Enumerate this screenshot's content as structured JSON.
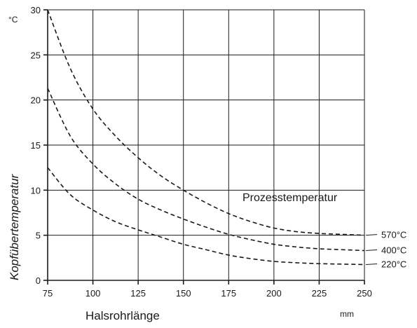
{
  "chart_data": {
    "type": "line",
    "xlabel": "Halsrohrlänge",
    "ylabel": "Kopfübertemperatur",
    "x_unit": "mm",
    "y_unit": "°C",
    "xlim": [
      75,
      250
    ],
    "ylim": [
      0,
      30
    ],
    "xticks": [
      75,
      100,
      125,
      150,
      175,
      200,
      225,
      250
    ],
    "yticks": [
      0,
      5,
      10,
      15,
      20,
      25,
      30
    ],
    "grid": true,
    "annotation": "Prozesstemperatur",
    "series": [
      {
        "name": "570°C",
        "x": [
          75,
          87.5,
          100,
          112.5,
          125,
          137.5,
          150,
          162.5,
          175,
          187.5,
          200,
          212.5,
          225,
          237.5,
          250
        ],
        "y": [
          30.0,
          23.5,
          19.0,
          16.0,
          13.6,
          11.6,
          10.0,
          8.6,
          7.4,
          6.5,
          5.8,
          5.4,
          5.2,
          5.1,
          5.0
        ]
      },
      {
        "name": "400°C",
        "x": [
          75,
          87.5,
          100,
          112.5,
          125,
          137.5,
          150,
          162.5,
          175,
          187.5,
          200,
          212.5,
          225,
          237.5,
          250
        ],
        "y": [
          21.3,
          16.0,
          12.9,
          10.7,
          9.0,
          7.8,
          6.8,
          5.9,
          5.1,
          4.5,
          4.0,
          3.7,
          3.5,
          3.4,
          3.3
        ]
      },
      {
        "name": "220°C",
        "x": [
          75,
          87.5,
          100,
          112.5,
          125,
          137.5,
          150,
          162.5,
          175,
          187.5,
          200,
          212.5,
          225,
          237.5,
          250
        ],
        "y": [
          12.5,
          9.5,
          7.8,
          6.5,
          5.6,
          4.8,
          4.0,
          3.4,
          2.8,
          2.4,
          2.1,
          1.95,
          1.85,
          1.8,
          1.75
        ]
      }
    ]
  }
}
